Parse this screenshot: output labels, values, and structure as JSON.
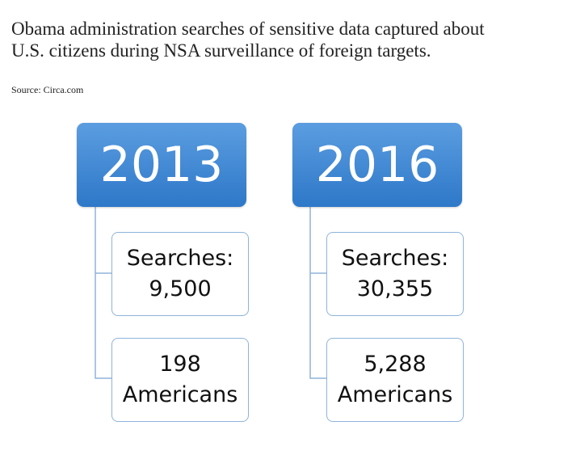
{
  "header": {
    "title_lines": [
      "Obama administration searches of sensitive data captured about",
      "U.S. citizens during NSA surveillance of foreign targets."
    ],
    "source": "Source: Circa.com"
  },
  "columns": [
    {
      "year": "2013",
      "boxes": [
        {
          "lines": [
            "Searches:",
            "9,500"
          ]
        },
        {
          "lines": [
            "198",
            "Americans"
          ]
        }
      ]
    },
    {
      "year": "2016",
      "boxes": [
        {
          "lines": [
            "Searches:",
            "30,355"
          ]
        },
        {
          "lines": [
            "5,288",
            "Americans"
          ]
        }
      ]
    }
  ]
}
